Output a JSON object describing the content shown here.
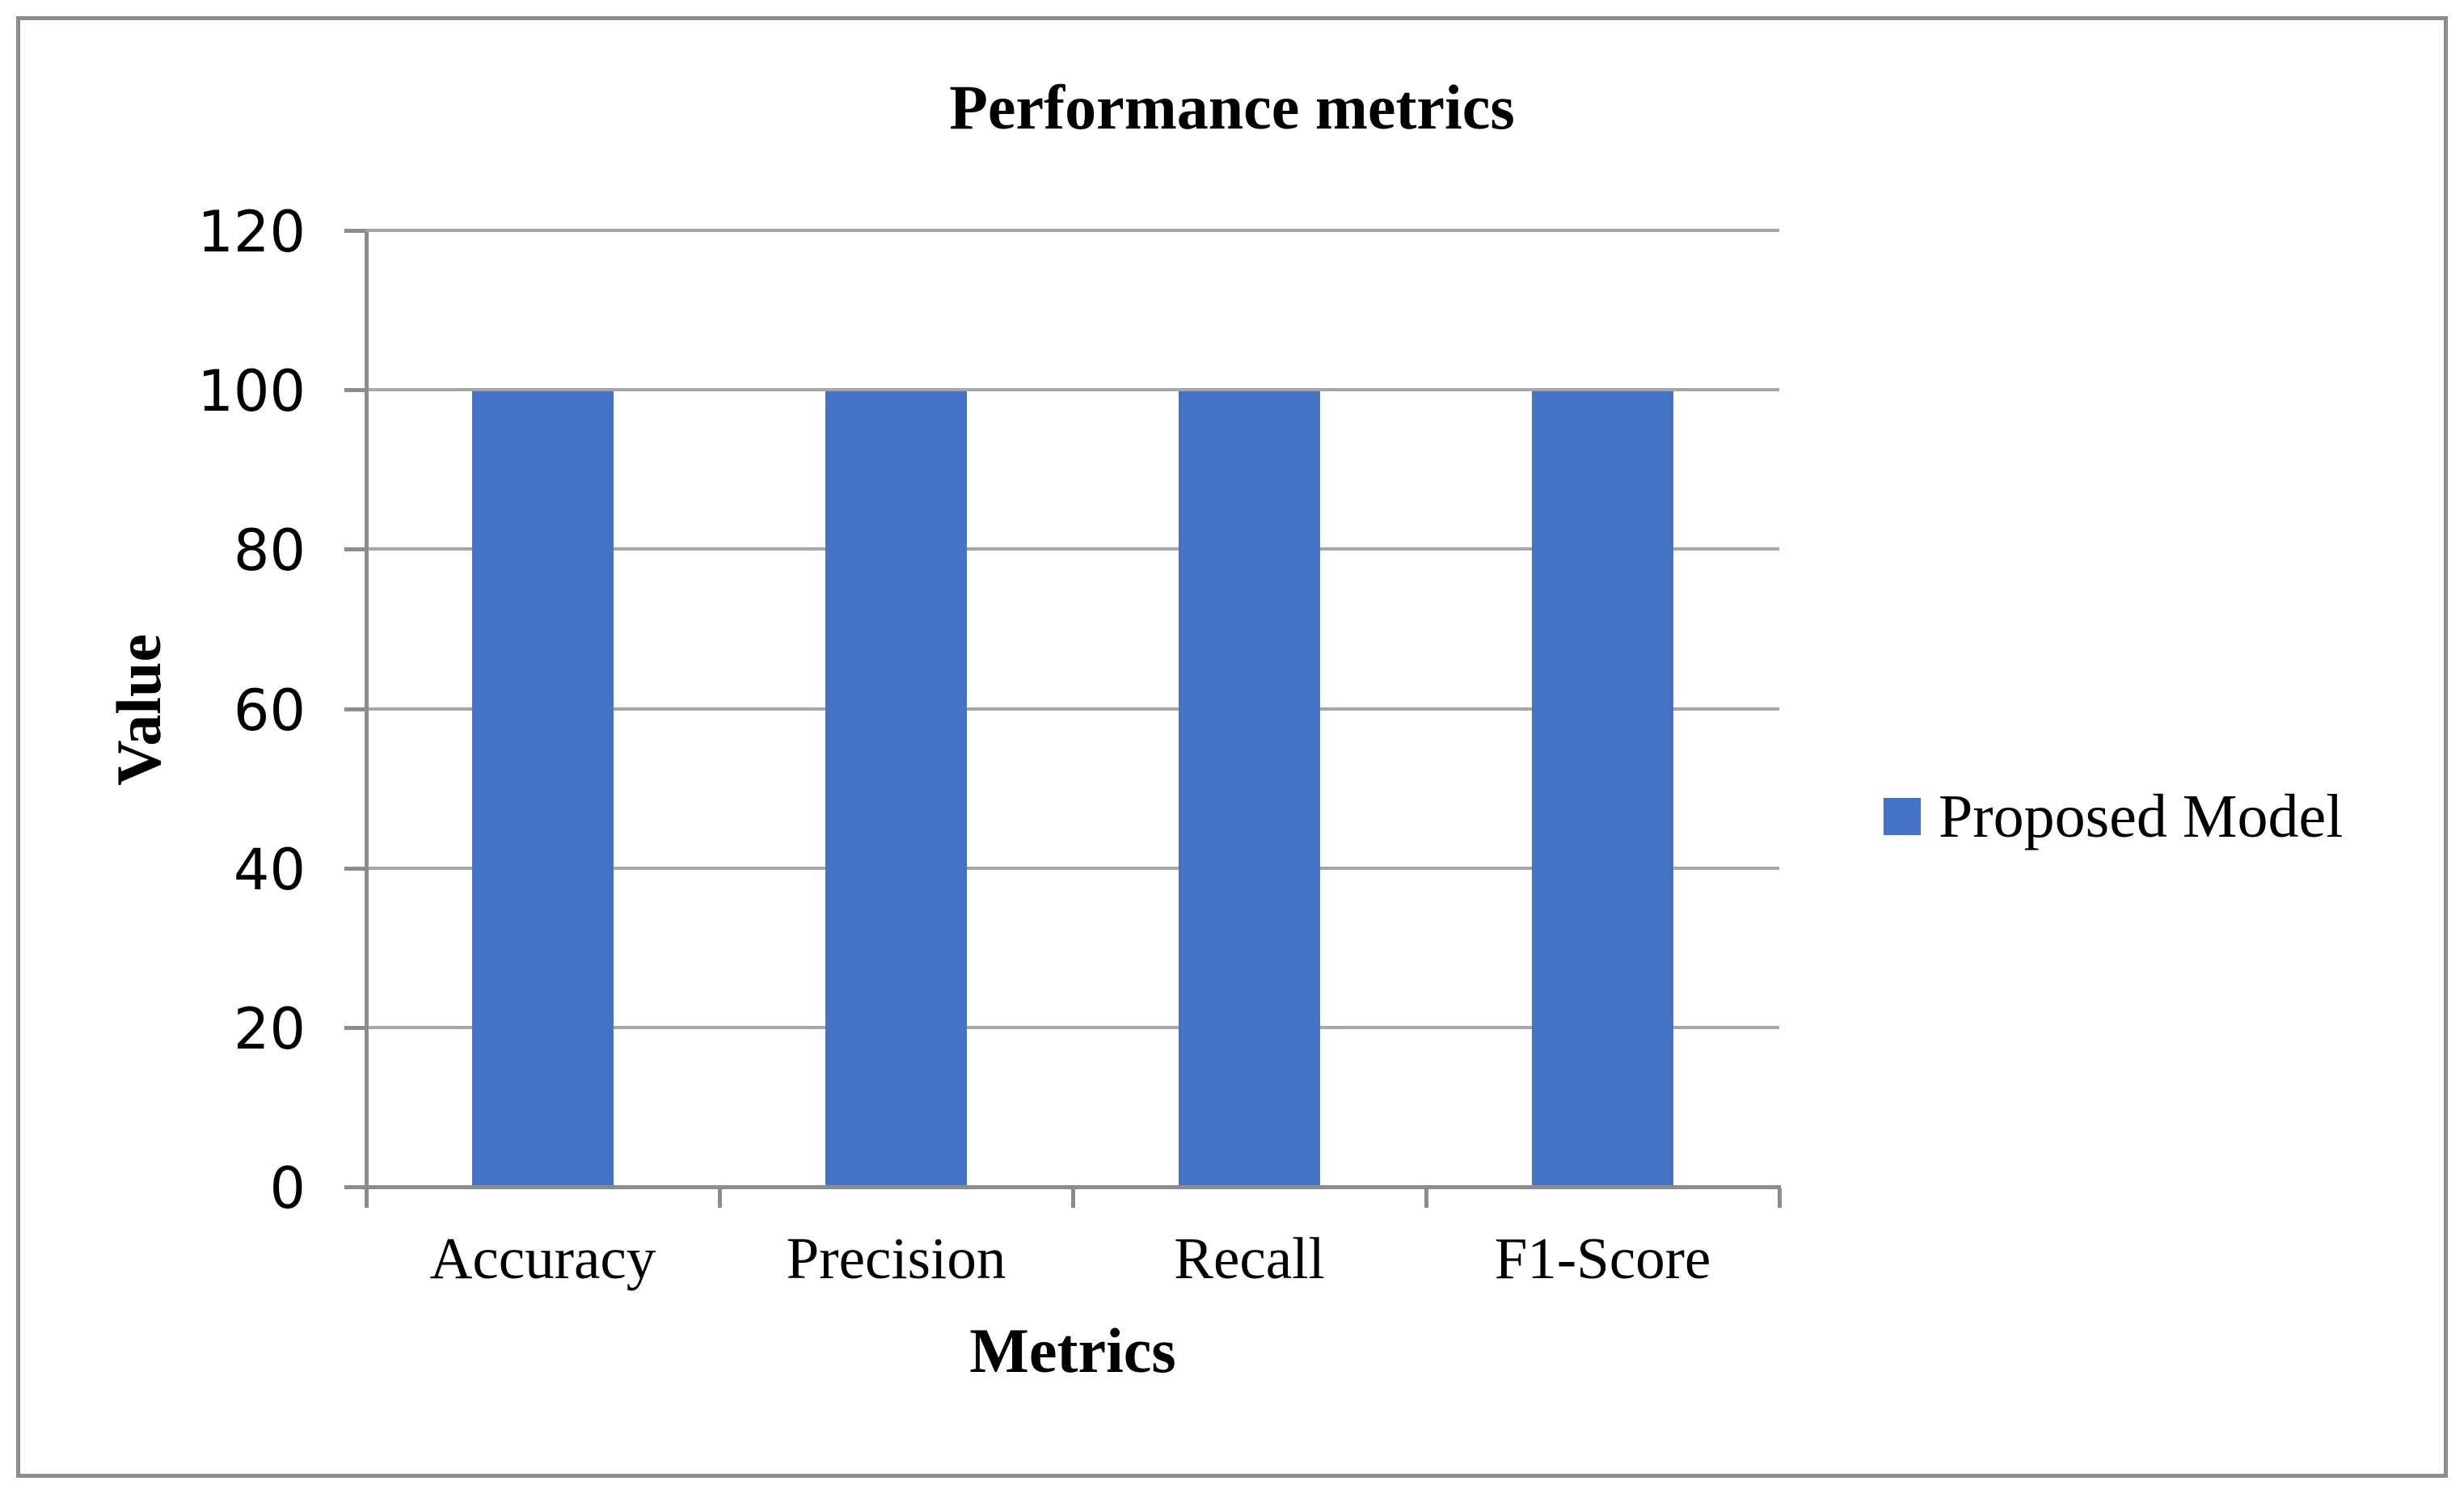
{
  "chart_data": {
    "type": "bar",
    "title": "Performance metrics",
    "xlabel": "Metrics",
    "ylabel": "Value",
    "categories": [
      "Accuracy",
      "Precision",
      "Recall",
      "F1-Score"
    ],
    "series": [
      {
        "name": "Proposed Model",
        "values": [
          100,
          100,
          100,
          100
        ]
      }
    ],
    "ylim": [
      0,
      120
    ],
    "yticks": [
      0,
      20,
      40,
      60,
      80,
      100,
      120
    ],
    "grid": "horizontal",
    "legend_position": "right",
    "bar_color": "#4472C4"
  }
}
